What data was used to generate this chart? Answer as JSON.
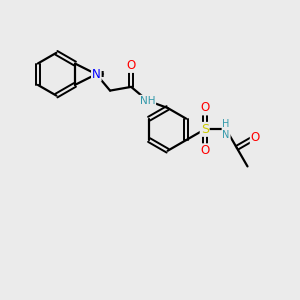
{
  "background_color": "#ebebeb",
  "bond_color": "#000000",
  "atom_colors": {
    "N": "#0000ff",
    "O": "#ff0000",
    "S": "#cccc00",
    "NH_color": "#3399aa"
  },
  "figsize": [
    3.0,
    3.0
  ],
  "dpi": 100
}
